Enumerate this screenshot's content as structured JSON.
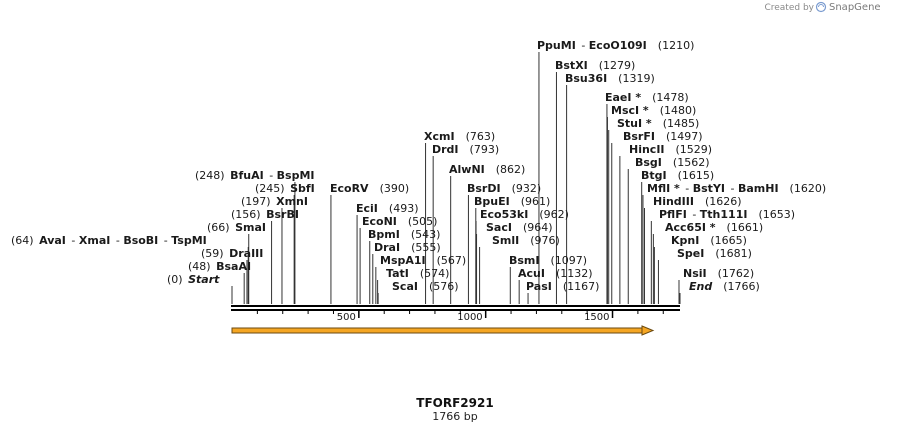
{
  "credit": {
    "prefix": "Created by",
    "brand": "SnapGene"
  },
  "sequence": {
    "name": "TFORF2921",
    "length_label": "1766 bp",
    "length": 1766
  },
  "ruler": {
    "ticks": [
      500,
      1000,
      1500
    ]
  },
  "colors": {
    "backbone": "#000000",
    "feature_fill": "#f5a623",
    "feature_border": "#6b4a10",
    "leader": "#333333"
  },
  "sites": [
    {
      "pos": 0,
      "label_pos": "(0)",
      "names": [
        "Start"
      ],
      "side": "left",
      "italic": true
    },
    {
      "pos": 48,
      "label_pos": "(48)",
      "names": [
        "BsaAI"
      ],
      "side": "left"
    },
    {
      "pos": 59,
      "label_pos": "(59)",
      "names": [
        "DraIII"
      ],
      "side": "left"
    },
    {
      "pos": 64,
      "label_pos": "(64)",
      "names": [
        "AvaI",
        "XmaI",
        "BsoBI",
        "TspMI"
      ],
      "side": "left"
    },
    {
      "pos": 66,
      "label_pos": "(66)",
      "names": [
        "SmaI"
      ],
      "side": "left"
    },
    {
      "pos": 156,
      "label_pos": "(156)",
      "names": [
        "BsrBI"
      ],
      "side": "left"
    },
    {
      "pos": 197,
      "label_pos": "(197)",
      "names": [
        "XmnI"
      ],
      "side": "left"
    },
    {
      "pos": 245,
      "label_pos": "(245)",
      "names": [
        "SbfI"
      ],
      "side": "left"
    },
    {
      "pos": 248,
      "label_pos": "(248)",
      "names": [
        "BfuAI",
        "BspMI"
      ],
      "side": "left"
    },
    {
      "pos": 390,
      "label_pos": "(390)",
      "names": [
        "EcoRV"
      ],
      "side": "right"
    },
    {
      "pos": 493,
      "label_pos": "(493)",
      "names": [
        "EciI"
      ],
      "side": "right"
    },
    {
      "pos": 505,
      "label_pos": "(505)",
      "names": [
        "EcoNI"
      ],
      "side": "right"
    },
    {
      "pos": 543,
      "label_pos": "(543)",
      "names": [
        "BpmI"
      ],
      "side": "right"
    },
    {
      "pos": 555,
      "label_pos": "(555)",
      "names": [
        "DraI"
      ],
      "side": "right"
    },
    {
      "pos": 567,
      "label_pos": "(567)",
      "names": [
        "MspA1I"
      ],
      "side": "right"
    },
    {
      "pos": 574,
      "label_pos": "(574)",
      "names": [
        "TatI"
      ],
      "side": "right"
    },
    {
      "pos": 576,
      "label_pos": "(576)",
      "names": [
        "ScaI"
      ],
      "side": "right"
    },
    {
      "pos": 763,
      "label_pos": "(763)",
      "names": [
        "XcmI"
      ],
      "side": "right"
    },
    {
      "pos": 793,
      "label_pos": "(793)",
      "names": [
        "DrdI"
      ],
      "side": "right"
    },
    {
      "pos": 862,
      "label_pos": "(862)",
      "names": [
        "AlwNI"
      ],
      "side": "right"
    },
    {
      "pos": 932,
      "label_pos": "(932)",
      "names": [
        "BsrDI"
      ],
      "side": "right"
    },
    {
      "pos": 961,
      "label_pos": "(961)",
      "names": [
        "BpuEI"
      ],
      "side": "right"
    },
    {
      "pos": 962,
      "label_pos": "(962)",
      "names": [
        "Eco53kI"
      ],
      "side": "right"
    },
    {
      "pos": 964,
      "label_pos": "(964)",
      "names": [
        "SacI"
      ],
      "side": "right"
    },
    {
      "pos": 976,
      "label_pos": "(976)",
      "names": [
        "SmlI"
      ],
      "side": "right"
    },
    {
      "pos": 1097,
      "label_pos": "(1097)",
      "names": [
        "BsmI"
      ],
      "side": "right"
    },
    {
      "pos": 1132,
      "label_pos": "(1132)",
      "names": [
        "AcuI"
      ],
      "side": "right"
    },
    {
      "pos": 1167,
      "label_pos": "(1167)",
      "names": [
        "PasI"
      ],
      "side": "right"
    },
    {
      "pos": 1210,
      "label_pos": "(1210)",
      "names": [
        "PpuMI",
        "EcoO109I"
      ],
      "side": "right"
    },
    {
      "pos": 1279,
      "label_pos": "(1279)",
      "names": [
        "BstXI"
      ],
      "side": "right"
    },
    {
      "pos": 1319,
      "label_pos": "(1319)",
      "names": [
        "Bsu36I"
      ],
      "side": "right"
    },
    {
      "pos": 1478,
      "label_pos": "(1478)",
      "names": [
        "EaeI *"
      ],
      "side": "right"
    },
    {
      "pos": 1480,
      "label_pos": "(1480)",
      "names": [
        "MscI *"
      ],
      "side": "right"
    },
    {
      "pos": 1485,
      "label_pos": "(1485)",
      "names": [
        "StuI *"
      ],
      "side": "right"
    },
    {
      "pos": 1497,
      "label_pos": "(1497)",
      "names": [
        "BsrFI"
      ],
      "side": "right"
    },
    {
      "pos": 1529,
      "label_pos": "(1529)",
      "names": [
        "HincII"
      ],
      "side": "right"
    },
    {
      "pos": 1562,
      "label_pos": "(1562)",
      "names": [
        "BsgI"
      ],
      "side": "right"
    },
    {
      "pos": 1615,
      "label_pos": "(1615)",
      "names": [
        "BtgI"
      ],
      "side": "right"
    },
    {
      "pos": 1620,
      "label_pos": "(1620)",
      "names": [
        "MflI *",
        "BstYI",
        "BamHI"
      ],
      "side": "right"
    },
    {
      "pos": 1626,
      "label_pos": "(1626)",
      "names": [
        "HindIII"
      ],
      "side": "right"
    },
    {
      "pos": 1653,
      "label_pos": "(1653)",
      "names": [
        "PflFI",
        "Tth111I"
      ],
      "side": "right"
    },
    {
      "pos": 1661,
      "label_pos": "(1661)",
      "names": [
        "Acc65I *"
      ],
      "side": "right"
    },
    {
      "pos": 1665,
      "label_pos": "(1665)",
      "names": [
        "KpnI"
      ],
      "side": "right"
    },
    {
      "pos": 1681,
      "label_pos": "(1681)",
      "names": [
        "SpeI"
      ],
      "side": "right"
    },
    {
      "pos": 1762,
      "label_pos": "(1762)",
      "names": [
        "NsiI"
      ],
      "side": "right"
    },
    {
      "pos": 1766,
      "label_pos": "(1766)",
      "names": [
        "End"
      ],
      "side": "right",
      "italic": true
    }
  ]
}
